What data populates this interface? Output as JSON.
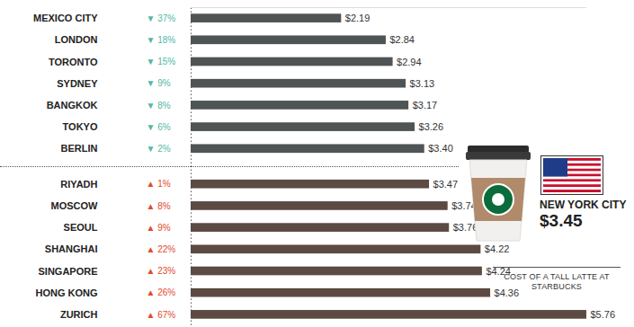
{
  "chart_data": {
    "type": "bar",
    "orientation": "horizontal",
    "data_labels": true,
    "tick_labels": false,
    "categories": [
      "ZURICH",
      "HONG KONG",
      "SINGAPORE",
      "SHANGHAI",
      "SEOUL",
      "MOSCOW",
      "RIYADH",
      "BERLIN",
      "TOKYO",
      "BANGKOK",
      "SYDNEY",
      "TORONTO",
      "LONDON",
      "MEXICO CITY"
    ],
    "series": [
      {
        "color": "#5c4a43",
        "values": [
          5.76,
          4.36,
          4.24,
          4.22,
          3.76,
          3.74,
          3.47,
          null,
          null,
          null,
          null,
          null,
          null,
          null
        ],
        "value_labels": [
          "$5.76",
          "$4.36",
          "$4.24",
          "$4.22",
          "$3.76",
          "$3.74",
          "$3.47",
          null,
          null,
          null,
          null,
          null,
          null,
          null
        ]
      },
      {
        "color": "#4f5455",
        "values": [
          null,
          null,
          null,
          null,
          null,
          null,
          null,
          3.4,
          3.26,
          3.17,
          3.13,
          2.94,
          2.84,
          2.19
        ],
        "value_labels": [
          null,
          null,
          null,
          null,
          null,
          null,
          null,
          "$3.40",
          "$3.26",
          "$3.17",
          "$3.13",
          "$2.94",
          "$2.84",
          "$2.19"
        ]
      }
    ],
    "changes": [
      67,
      26,
      23,
      22,
      9,
      8,
      1,
      -2,
      -6,
      -8,
      -9,
      -15,
      -18,
      -37
    ],
    "change_labels": [
      "▲ 67%",
      "▲ 26%",
      "▲ 23%",
      "▲ 22%",
      "▲ 9%",
      "▲ 8%",
      "▲ 1%",
      "▼ 2%",
      "▼ 6%",
      "▼ 8%",
      "▼ 9%",
      "▼ 15%",
      "▼ 18%",
      "▼ 37%"
    ],
    "reference": {
      "label": "NEW YORK CITY",
      "value": 3.45,
      "value_label": "$3.45",
      "caption": "COST OF A TALL LATTE AT STARBUCKS"
    },
    "xlim": [
      0,
      5.76
    ],
    "xticks": []
  }
}
